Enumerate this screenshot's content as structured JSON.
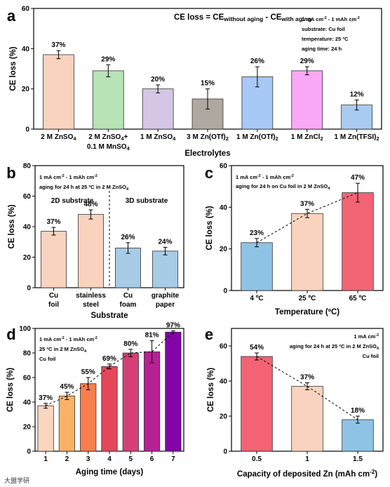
{
  "chart_data": [
    {
      "panel": "a",
      "type": "bar",
      "ylabel": "CE loss (%)",
      "xlabel": "Electrolytes",
      "ylim": [
        0,
        60
      ],
      "yticks": [
        0,
        20,
        40,
        60
      ],
      "formula": "CE loss = CE",
      "formula_sub1": "without aging",
      "formula_mid": " - CE",
      "formula_sub2": "with aging",
      "annotation": [
        "1 mA cm",
        "-2",
        " - 1 mAh cm",
        "-2",
        "substrate: Cu foil",
        "temperature: 25 ºC",
        "aging time: 24 h"
      ],
      "categories": [
        {
          "l1": "2 M ZnSO",
          "s1": "4",
          "l1b": "",
          "l2": ""
        },
        {
          "l1": "2 M ZnSO",
          "s1": "4",
          "l1b": "+",
          "l2": "0.1 M MnSO",
          "s2": "4"
        },
        {
          "l1": "1 M ZnSO",
          "s1": "4",
          "l1b": "",
          "l2": ""
        },
        {
          "l1": "3 M Zn(OTf)",
          "s1": "2",
          "l1b": "",
          "l2": ""
        },
        {
          "l1": "1 M Zn(OTf)",
          "s1": "2",
          "l1b": "",
          "l2": ""
        },
        {
          "l1": "1 M ZnCl",
          "s1": "2",
          "l1b": "",
          "l2": ""
        },
        {
          "l1": "1 M Zn(TFSI)",
          "s1": "2",
          "l1b": "",
          "l2": ""
        }
      ],
      "values": [
        37,
        29,
        20,
        15,
        26,
        29,
        12
      ],
      "errors": [
        2,
        3,
        2,
        5,
        5,
        2,
        2.5
      ],
      "labels": [
        "37%",
        "29%",
        "20%",
        "15%",
        "26%",
        "29%",
        "12%"
      ],
      "colors": [
        "#F9D3BE",
        "#B7E3B6",
        "#D5C6E6",
        "#AFA8A0",
        "#A8C8F5",
        "#F9A8F5",
        "#A9CBF0"
      ]
    },
    {
      "panel": "b",
      "type": "bar",
      "ylabel": "CE loss (%)",
      "xlabel": "Substrate",
      "ylim": [
        0,
        80
      ],
      "yticks": [
        0,
        20,
        40,
        60,
        80
      ],
      "annotation1": "1 mA cm",
      "annotation2": "aging for 24 h at 25 ºC in 2 M ZnSO",
      "group1": "2D substrate",
      "group2": "3D substrate",
      "categories": [
        [
          "Cu",
          "foil"
        ],
        [
          "stainless",
          "steel"
        ],
        [
          "Cu",
          "foam"
        ],
        [
          "graphite",
          "paper"
        ]
      ],
      "values": [
        37,
        48,
        26,
        24
      ],
      "errors": [
        2.5,
        3,
        3.5,
        2.5
      ],
      "labels": [
        "37%",
        "48%",
        "26%",
        "24%"
      ],
      "colors": [
        "#F9D3BE",
        "#F9D3BE",
        "#A8CBE6",
        "#A8CBE6"
      ]
    },
    {
      "panel": "c",
      "type": "bar",
      "ylabel": "CE loss (%)",
      "xlabel": "Temperature (ºC)",
      "ylim": [
        0,
        60
      ],
      "yticks": [
        0,
        20,
        40,
        60
      ],
      "annotation1": "1 mA cm",
      "annotation2": "aging for 24 h on Cu foil in 2 M ZnSO",
      "categories": [
        "4 ºC",
        "25 ºC",
        "65 ºC"
      ],
      "values": [
        23,
        37,
        47
      ],
      "errors": [
        2,
        2,
        4.5
      ],
      "labels": [
        "23%",
        "37%",
        "47%"
      ],
      "colors": [
        "#8FC3E6",
        "#F9D3BE",
        "#F26473"
      ]
    },
    {
      "panel": "d",
      "type": "bar",
      "ylabel": "CE loss (%)",
      "xlabel": "Aging time (days)",
      "ylim": [
        0,
        100
      ],
      "yticks": [
        0,
        20,
        40,
        60,
        80,
        100
      ],
      "annotation": [
        "1 mA cm",
        "25 ºC in 2 M ZnSO",
        "Cu foil"
      ],
      "categories": [
        "1",
        "2",
        "3",
        "4",
        "5",
        "6",
        "7"
      ],
      "values": [
        37,
        45,
        55,
        69,
        80,
        81,
        97
      ],
      "errors": [
        2,
        3,
        5,
        2,
        3,
        9,
        1
      ],
      "labels": [
        "37%",
        "45%",
        "55%",
        "69%",
        "80%",
        "81%",
        "97%"
      ],
      "colors": [
        "#FBD6BE",
        "#FBB267",
        "#F77F4E",
        "#E4475A",
        "#D43F77",
        "#B82195",
        "#8304A6"
      ]
    },
    {
      "panel": "e",
      "type": "bar",
      "ylabel": "CE loss (%)",
      "xlabel": "Capacity of deposited Zn (mAh cm",
      "ylim": [
        0,
        70
      ],
      "yticks": [
        0,
        20,
        40,
        60
      ],
      "annotation": [
        "1 mA cm",
        "aging for 24 h at 25 ºC in 2 M ZnSO",
        "Cu foil"
      ],
      "categories": [
        "0.5",
        "1",
        "1.5"
      ],
      "values": [
        54,
        37,
        18
      ],
      "errors": [
        2,
        2,
        2
      ],
      "labels": [
        "54%",
        "37%",
        "18%"
      ],
      "colors": [
        "#F26473",
        "#F9D3BE",
        "#8FC3E6"
      ]
    }
  ],
  "watermark": "大盟学研"
}
